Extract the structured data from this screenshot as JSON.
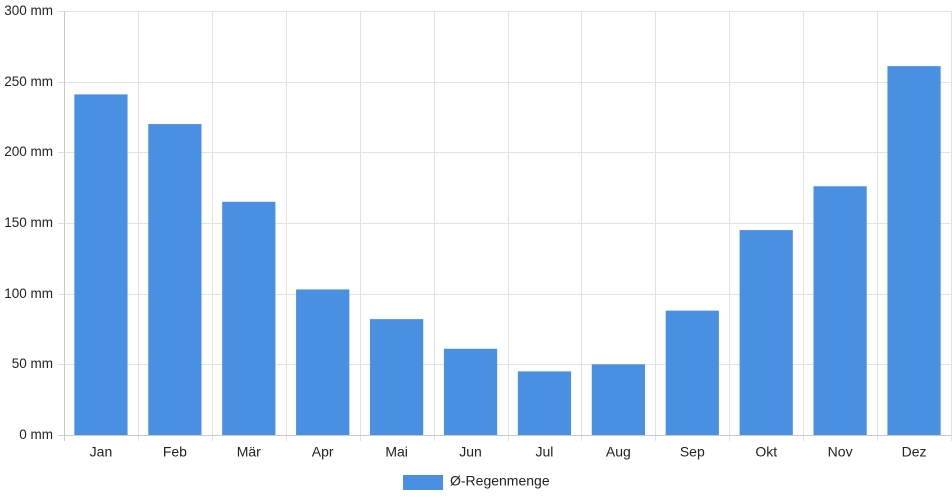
{
  "chart_data": {
    "type": "bar",
    "categories": [
      "Jan",
      "Feb",
      "Mär",
      "Apr",
      "Mai",
      "Jun",
      "Jul",
      "Aug",
      "Sep",
      "Okt",
      "Nov",
      "Dez"
    ],
    "series": [
      {
        "name": "Ø-Regenmenge",
        "values": [
          241,
          220,
          165,
          103,
          82,
          61,
          45,
          50,
          88,
          145,
          176,
          261
        ],
        "color": "#4a90e2"
      }
    ],
    "y_ticks": [
      "0 mm",
      "50 mm",
      "100 mm",
      "150 mm",
      "200 mm",
      "250 mm",
      "300 mm"
    ],
    "y_tick_values": [
      0,
      50,
      100,
      150,
      200,
      250,
      300
    ],
    "ylim": [
      0,
      300
    ],
    "grid": true,
    "legend_position": "bottom"
  }
}
